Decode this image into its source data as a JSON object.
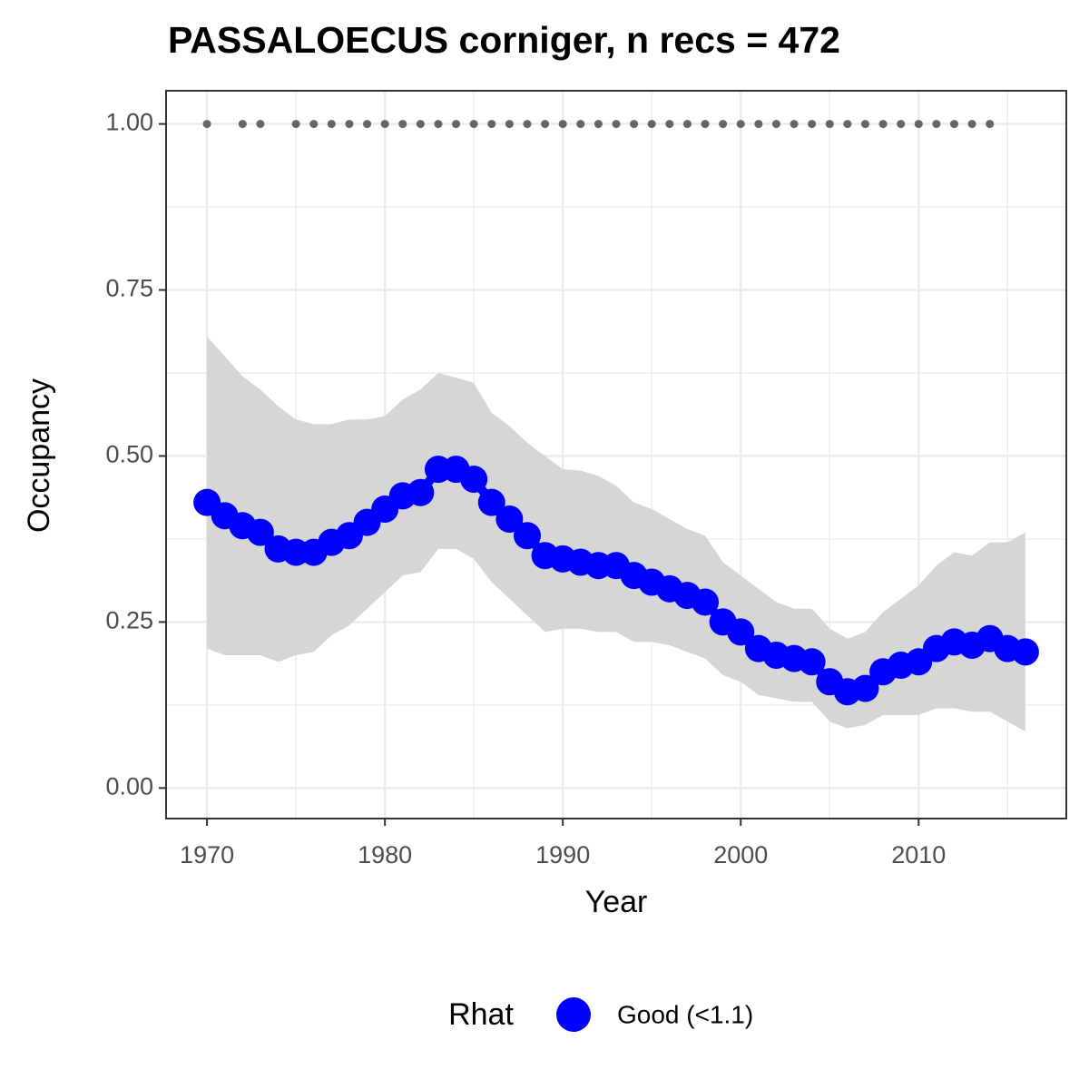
{
  "chart_data": {
    "type": "line",
    "title": "PASSALOECUS corniger, n recs = 472",
    "x_label": "Year",
    "y_label": "Occupancy",
    "legend_title": "Rhat",
    "x": [
      1970,
      1971,
      1972,
      1973,
      1974,
      1975,
      1976,
      1977,
      1978,
      1979,
      1980,
      1981,
      1982,
      1983,
      1984,
      1985,
      1986,
      1987,
      1988,
      1989,
      1990,
      1991,
      1992,
      1993,
      1994,
      1995,
      1996,
      1997,
      1998,
      1999,
      2000,
      2001,
      2002,
      2003,
      2004,
      2005,
      2006,
      2007,
      2008,
      2009,
      2010,
      2011,
      2012,
      2013,
      2014,
      2015,
      2016
    ],
    "series": [
      {
        "name": "Good (<1.1)",
        "color": "#0000ff",
        "values": [
          0.43,
          0.41,
          0.395,
          0.385,
          0.36,
          0.355,
          0.355,
          0.37,
          0.38,
          0.4,
          0.42,
          0.44,
          0.445,
          0.48,
          0.48,
          0.465,
          0.43,
          0.405,
          0.38,
          0.35,
          0.345,
          0.34,
          0.335,
          0.335,
          0.32,
          0.31,
          0.3,
          0.29,
          0.28,
          0.25,
          0.235,
          0.21,
          0.2,
          0.195,
          0.19,
          0.16,
          0.145,
          0.15,
          0.175,
          0.185,
          0.19,
          0.21,
          0.22,
          0.215,
          0.225,
          0.21,
          0.205
        ],
        "upper": [
          0.68,
          0.65,
          0.62,
          0.6,
          0.575,
          0.555,
          0.548,
          0.548,
          0.555,
          0.555,
          0.56,
          0.585,
          0.6,
          0.625,
          0.618,
          0.61,
          0.565,
          0.545,
          0.52,
          0.5,
          0.48,
          0.478,
          0.47,
          0.455,
          0.43,
          0.42,
          0.405,
          0.39,
          0.38,
          0.34,
          0.32,
          0.3,
          0.28,
          0.27,
          0.27,
          0.24,
          0.225,
          0.235,
          0.265,
          0.285,
          0.305,
          0.335,
          0.355,
          0.35,
          0.37,
          0.37,
          0.385
        ],
        "lower": [
          0.21,
          0.2,
          0.2,
          0.2,
          0.19,
          0.2,
          0.205,
          0.23,
          0.245,
          0.27,
          0.295,
          0.32,
          0.325,
          0.36,
          0.36,
          0.345,
          0.31,
          0.285,
          0.26,
          0.235,
          0.24,
          0.24,
          0.235,
          0.235,
          0.22,
          0.22,
          0.215,
          0.205,
          0.195,
          0.17,
          0.16,
          0.14,
          0.135,
          0.13,
          0.13,
          0.1,
          0.09,
          0.095,
          0.11,
          0.11,
          0.11,
          0.12,
          0.12,
          0.115,
          0.115,
          0.1,
          0.085
        ]
      }
    ],
    "band_color": "#d6d6d6",
    "records": {
      "color": "#666666",
      "x": [
        1970,
        1972,
        1973,
        1975,
        1976,
        1977,
        1978,
        1979,
        1980,
        1981,
        1982,
        1983,
        1984,
        1985,
        1986,
        1987,
        1988,
        1989,
        1990,
        1991,
        1992,
        1993,
        1994,
        1995,
        1996,
        1997,
        1998,
        1999,
        2000,
        2001,
        2002,
        2003,
        2004,
        2005,
        2006,
        2007,
        2008,
        2009,
        2010,
        2011,
        2012,
        2013,
        2014
      ],
      "values": [
        1,
        1,
        1,
        1,
        1,
        1,
        1,
        1,
        1,
        1,
        1,
        1,
        1,
        1,
        1,
        1,
        1,
        1,
        1,
        1,
        1,
        1,
        1,
        1,
        1,
        1,
        1,
        1,
        1,
        1,
        1,
        1,
        1,
        1,
        1,
        1,
        1,
        1,
        1,
        1,
        1,
        1,
        1
      ]
    },
    "xlim": [
      1967.7,
      2018.3
    ],
    "ylim": [
      -0.046,
      1.05
    ],
    "xticks": [
      1970,
      1980,
      1990,
      2000,
      2010
    ],
    "yticks": [
      {
        "value": 0,
        "label": "0.00"
      },
      {
        "value": 0.25,
        "label": "0.25"
      },
      {
        "value": 0.5,
        "label": "0.50"
      },
      {
        "value": 0.75,
        "label": "0.75"
      },
      {
        "value": 1,
        "label": "1.00"
      }
    ],
    "x_minor_grid": [
      1975,
      1985,
      1995,
      2005,
      2015
    ],
    "y_minor_grid": [
      0.125,
      0.375,
      0.625,
      0.875
    ],
    "grid": true
  }
}
